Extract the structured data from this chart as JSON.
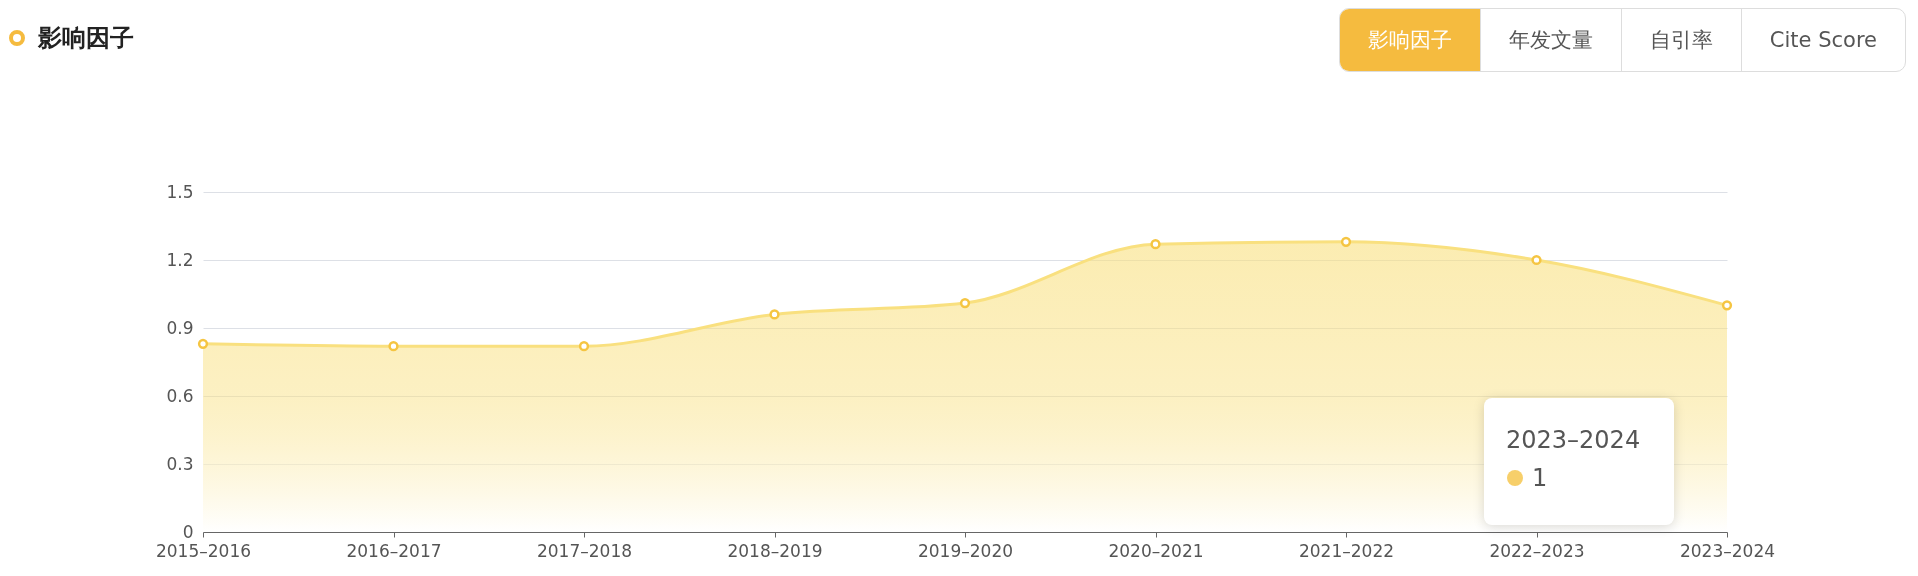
{
  "chart_data": {
    "type": "area",
    "title": "影响因子",
    "categories": [
      "2015–2016",
      "2016–2017",
      "2017–2018",
      "2018–2019",
      "2019–2020",
      "2020–2021",
      "2021–2022",
      "2022–2023",
      "2023–2024"
    ],
    "series": [
      {
        "color": "#f9e07f",
        "values": [
          0.83,
          0.82,
          0.82,
          0.96,
          1.01,
          1.27,
          1.28,
          1.2,
          1
        ]
      }
    ],
    "ylim": [
      0,
      1.5
    ],
    "yticks": [
      {
        "value": 0,
        "label": "0"
      },
      0.3,
      0.6,
      0.9,
      1.2,
      1.5
    ],
    "grid": "y",
    "marker": "circle",
    "annotations": [
      "影响因子",
      "年发文量",
      "自引率",
      "Cite Score",
      "2023–2024",
      "1"
    ]
  }
}
